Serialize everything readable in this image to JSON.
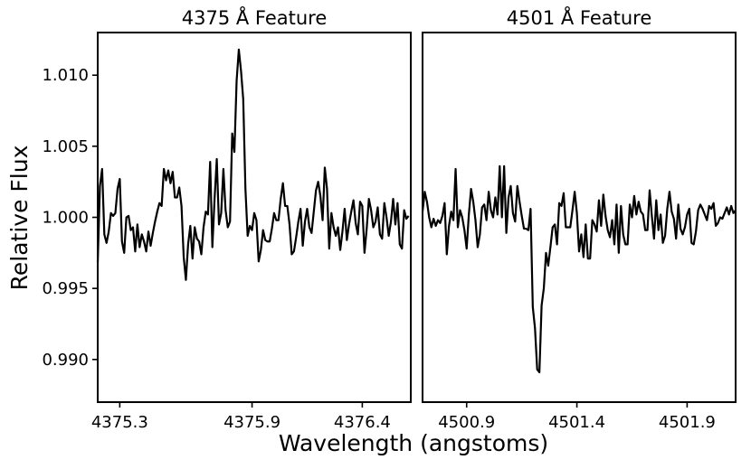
{
  "chart_data": [
    {
      "type": "line",
      "title": "4375 Å Feature",
      "xlabel": "Wavelength (angstoms)",
      "ylabel": "Relative Flux",
      "xlim": [
        4375.2,
        4376.62
      ],
      "ylim": [
        0.987,
        1.013
      ],
      "xticks": [
        4375.3,
        4375.9,
        4376.4
      ],
      "xtick_labels": [
        "4375.3",
        "4375.9",
        "4376.4"
      ],
      "yticks": [
        0.99,
        0.995,
        1.0,
        1.005,
        1.01
      ],
      "ytick_labels": [
        "0.990",
        "0.995",
        "1.000",
        "1.005",
        "1.010"
      ],
      "grid": false,
      "series": [
        {
          "color": "#000000",
          "x": [
            4375.2,
            4375.21,
            4375.22,
            4375.23,
            4375.24,
            4375.25,
            4375.26,
            4375.27,
            4375.28,
            4375.29,
            4375.3,
            4375.31,
            4375.32,
            4375.33,
            4375.34,
            4375.35,
            4375.36,
            4375.37,
            4375.38,
            4375.39,
            4375.4,
            4375.41,
            4375.42,
            4375.43,
            4375.44,
            4375.45,
            4375.46,
            4375.47,
            4375.48,
            4375.49,
            4375.5,
            4375.51,
            4375.52,
            4375.53,
            4375.54,
            4375.55,
            4375.56,
            4375.57,
            4375.58,
            4375.59,
            4375.6,
            4375.61,
            4375.62,
            4375.63,
            4375.64,
            4375.65,
            4375.66,
            4375.67,
            4375.68,
            4375.69,
            4375.7,
            4375.71,
            4375.72,
            4375.73,
            4375.74,
            4375.75,
            4375.76,
            4375.77,
            4375.78,
            4375.79,
            4375.8,
            4375.81,
            4375.82,
            4375.83,
            4375.84,
            4375.85,
            4375.86,
            4375.87,
            4375.88,
            4375.89,
            4375.9,
            4375.91,
            4375.92,
            4375.93,
            4375.94,
            4375.95,
            4375.96,
            4375.97,
            4375.98,
            4375.99,
            4376.0,
            4376.01,
            4376.02,
            4376.03,
            4376.04,
            4376.05,
            4376.06,
            4376.07,
            4376.08,
            4376.09,
            4376.1,
            4376.11,
            4376.12,
            4376.13,
            4376.14,
            4376.15,
            4376.16,
            4376.17,
            4376.18,
            4376.19,
            4376.2,
            4376.21,
            4376.22,
            4376.23,
            4376.24,
            4376.25,
            4376.26,
            4376.27,
            4376.28,
            4376.29,
            4376.3,
            4376.31,
            4376.32,
            4376.33,
            4376.34,
            4376.35,
            4376.36,
            4376.37,
            4376.38,
            4376.39,
            4376.4,
            4376.41,
            4376.42,
            4376.43,
            4376.44,
            4376.45,
            4376.46,
            4376.47,
            4376.48,
            4376.49,
            4376.5,
            4376.51,
            4376.52,
            4376.53,
            4376.54,
            4376.55,
            4376.56,
            4376.57,
            4376.58,
            4376.59,
            4376.6,
            4376.61
          ],
          "y": [
            0.9968,
            1.0022,
            1.0034,
            0.9988,
            0.9982,
            0.999,
            1.0003,
            1.0001,
            1.0003,
            1.002,
            1.0027,
            0.9983,
            0.9975,
            1.0,
            1.0001,
            0.9991,
            0.9993,
            0.9976,
            0.9995,
            0.9979,
            0.9988,
            0.9983,
            0.9976,
            0.999,
            0.998,
            0.9989,
            0.9997,
            1.0004,
            1.001,
            1.0008,
            1.0034,
            1.0026,
            1.0033,
            1.0024,
            1.0032,
            1.0014,
            1.0014,
            1.0021,
            1.0008,
            0.9972,
            0.9956,
            0.9981,
            0.9994,
            0.9971,
            0.9993,
            0.9985,
            0.9983,
            0.9974,
            0.9993,
            1.0004,
            1.0002,
            1.0039,
            0.9979,
            1.0013,
            1.0041,
            0.9995,
            1.0003,
            1.0034,
            1.0005,
            0.9993,
            0.9997,
            1.0059,
            1.0046,
            1.0096,
            1.0118,
            1.0103,
            1.0083,
            1.002,
            0.9987,
            0.9994,
            0.9991,
            1.0003,
            0.9998,
            0.9969,
            0.9977,
            0.9991,
            0.9984,
            0.9983,
            0.9983,
            0.9992,
            1.0003,
            0.9998,
            0.9998,
            1.0013,
            1.0024,
            1.0008,
            1.0008,
            0.9995,
            0.9974,
            0.9976,
            0.9986,
            0.9997,
            1.0006,
            0.998,
            0.9997,
            1.0006,
            0.9993,
            0.9989,
            1.0004,
            1.0019,
            1.0025,
            1.0015,
            0.9998,
            1.0035,
            1.002,
            0.9978,
            1.0003,
            0.9993,
            0.9987,
            0.9993,
            0.9977,
            0.999,
            1.0006,
            0.9984,
            0.9995,
            1.0004,
            1.0012,
            0.9996,
            0.9988,
            1.0011,
            1.0008,
            0.9975,
            0.9992,
            1.0013,
            1.0005,
            0.9993,
            0.9997,
            1.0007,
            0.9988,
            0.9985,
            1.001,
            1.0,
            0.9987,
            0.9997,
            1.0013,
            0.9995,
            1.001,
            0.9981,
            0.9978,
            1.0005,
            0.9999,
            1.0001
          ]
        }
      ]
    },
    {
      "type": "line",
      "title": "4501 Å Feature",
      "xlabel": "Wavelength (angstoms)",
      "ylabel": "Relative Flux",
      "xlim": [
        4500.7,
        4502.12
      ],
      "ylim": [
        0.987,
        1.013
      ],
      "xticks": [
        4500.9,
        4501.4,
        4501.9
      ],
      "xtick_labels": [
        "4500.9",
        "4501.4",
        "4501.9"
      ],
      "grid": false,
      "series": [
        {
          "color": "#000000",
          "x": [
            4500.7,
            4500.71,
            4500.72,
            4500.73,
            4500.74,
            4500.75,
            4500.76,
            4500.77,
            4500.78,
            4500.79,
            4500.8,
            4500.81,
            4500.82,
            4500.83,
            4500.84,
            4500.85,
            4500.86,
            4500.87,
            4500.88,
            4500.89,
            4500.9,
            4500.91,
            4500.92,
            4500.93,
            4500.94,
            4500.95,
            4500.96,
            4500.97,
            4500.98,
            4500.99,
            4501.0,
            4501.01,
            4501.02,
            4501.03,
            4501.04,
            4501.05,
            4501.06,
            4501.07,
            4501.08,
            4501.09,
            4501.1,
            4501.11,
            4501.12,
            4501.13,
            4501.14,
            4501.15,
            4501.16,
            4501.17,
            4501.18,
            4501.19,
            4501.2,
            4501.21,
            4501.22,
            4501.23,
            4501.24,
            4501.25,
            4501.26,
            4501.27,
            4501.28,
            4501.29,
            4501.3,
            4501.31,
            4501.32,
            4501.33,
            4501.34,
            4501.35,
            4501.36,
            4501.37,
            4501.38,
            4501.39,
            4501.4,
            4501.41,
            4501.42,
            4501.43,
            4501.44,
            4501.45,
            4501.46,
            4501.47,
            4501.48,
            4501.49,
            4501.5,
            4501.51,
            4501.52,
            4501.53,
            4501.54,
            4501.55,
            4501.56,
            4501.57,
            4501.58,
            4501.59,
            4501.6,
            4501.61,
            4501.62,
            4501.63,
            4501.64,
            4501.65,
            4501.66,
            4501.67,
            4501.68,
            4501.69,
            4501.7,
            4501.71,
            4501.72,
            4501.73,
            4501.74,
            4501.75,
            4501.76,
            4501.77,
            4501.78,
            4501.79,
            4501.8,
            4501.81,
            4501.82,
            4501.83,
            4501.84,
            4501.85,
            4501.86,
            4501.87,
            4501.88,
            4501.89,
            4501.9,
            4501.91,
            4501.92,
            4501.93,
            4501.94,
            4501.95,
            4501.96,
            4501.97,
            4501.98,
            4501.99,
            4502.0,
            4502.01,
            4502.02,
            4502.03,
            4502.04,
            4502.05,
            4502.06,
            4502.07,
            4502.08,
            4502.09,
            4502.1,
            4502.11,
            4502.12
          ],
          "y": [
            1.0004,
            1.0018,
            1.0011,
            1.0,
            0.9993,
            0.9999,
            0.9994,
            0.9998,
            0.9996,
            1.0001,
            1.001,
            0.9974,
            0.9994,
            1.0004,
            0.9998,
            1.0034,
            0.9993,
            1.0005,
            1.0,
            0.9991,
            0.9978,
            1.0002,
            1.002,
            1.0011,
            0.9998,
            0.9979,
            0.9988,
            1.0007,
            1.0009,
            0.9998,
            1.0018,
            1.0005,
            1.0,
            1.0014,
            1.0002,
            1.0036,
            1.0,
            1.0036,
            0.9989,
            1.0014,
            1.0022,
            1.0003,
            0.9997,
            1.0022,
            1.0011,
            1.0001,
            0.9992,
            0.9992,
            0.9991,
            1.0006,
            0.9937,
            0.9922,
            0.9893,
            0.9891,
            0.9938,
            0.995,
            0.9975,
            0.9966,
            0.9979,
            0.9993,
            0.9995,
            0.9981,
            1.001,
            1.0008,
            1.0017,
            0.9993,
            0.9993,
            0.9993,
            1.0005,
            1.0018,
            1.0003,
            0.9976,
            0.9988,
            0.9972,
            0.9995,
            0.9971,
            0.9971,
            0.9998,
            0.9995,
            0.999,
            1.0012,
            0.9994,
            1.0016,
            1.0001,
            0.9991,
            0.9986,
            0.9998,
            0.9981,
            1.0009,
            0.9975,
            1.0008,
            0.9988,
            0.9981,
            0.9981,
            1.0009,
            1.0,
            1.0015,
            1.0002,
            1.0011,
            1.0004,
            1.0002,
            0.9991,
            0.9991,
            1.0019,
            1.0001,
            0.9985,
            1.0012,
            0.9991,
            1.0002,
            0.9982,
            0.9987,
            1.0006,
            1.0018,
            1.0004,
            0.9999,
            0.9985,
            1.0009,
            0.9992,
            0.9988,
            0.9993,
            1.0002,
            1.0006,
            0.9982,
            0.9981,
            0.999,
            1.0005,
            1.0009,
            1.0006,
            1.0002,
            0.9998,
            1.0008,
            1.0006,
            1.001,
            0.9994,
            0.9996,
            1.0,
            0.9999,
            1.0003,
            1.0007,
            1.0002,
            1.0008,
            1.0003,
            1.0005
          ]
        }
      ]
    }
  ]
}
